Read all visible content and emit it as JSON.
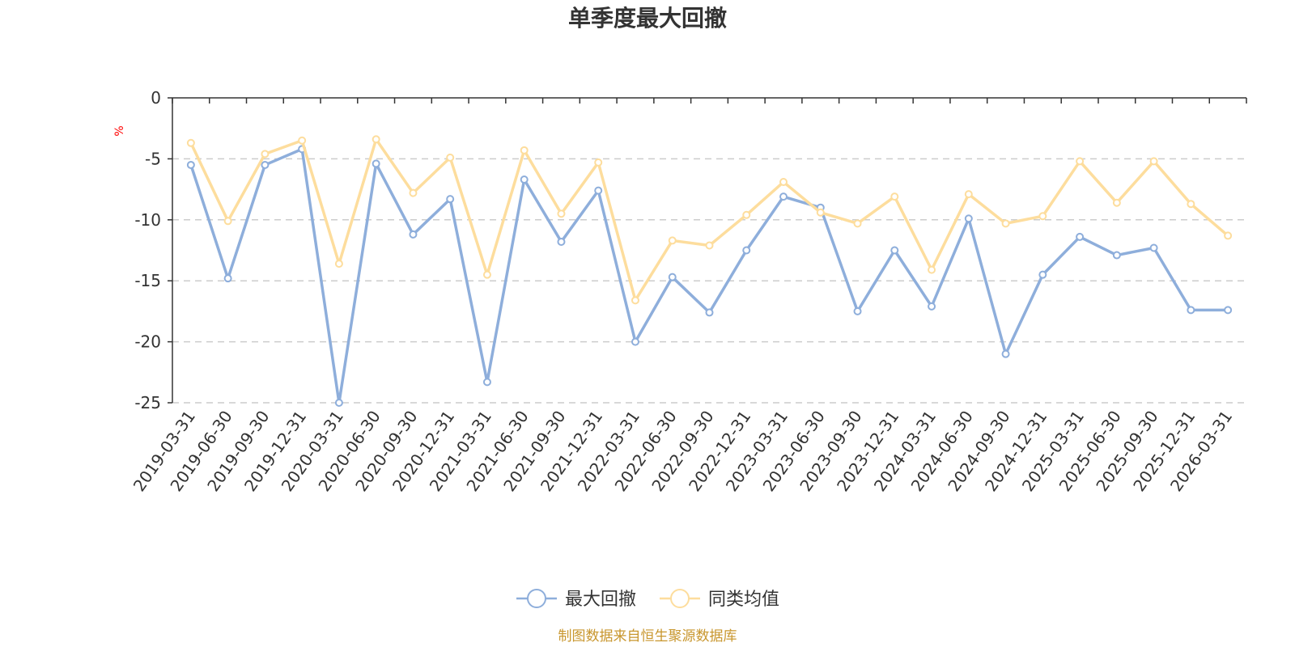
{
  "chart_data": {
    "type": "line",
    "title": "单季度最大回撤",
    "ylabel": "%",
    "ylim": [
      -25,
      0
    ],
    "yticks": [
      0,
      -5,
      -10,
      -15,
      -20,
      -25
    ],
    "categories": [
      "2019-03-31",
      "2019-06-30",
      "2019-09-30",
      "2019-12-31",
      "2020-03-31",
      "2020-06-30",
      "2020-09-30",
      "2020-12-31",
      "2021-03-31",
      "2021-06-30",
      "2021-09-30",
      "2021-12-31",
      "2022-03-31",
      "2022-06-30",
      "2022-09-30",
      "2022-12-31",
      "2023-03-31",
      "2023-06-30",
      "2023-09-30",
      "2023-12-31",
      "2024-03-31",
      "2024-06-30",
      "2024-09-30",
      "2024-12-31",
      "2025-03-31",
      "2025-06-30",
      "2025-09-30",
      "2025-12-31",
      "2026-03-31"
    ],
    "series": [
      {
        "name": "最大回撤",
        "color": "#8eaedb",
        "values": [
          -5.5,
          -14.8,
          -5.5,
          -4.2,
          -25.0,
          -5.4,
          -11.2,
          -8.3,
          -23.3,
          -6.7,
          -11.8,
          -7.6,
          -20.0,
          -14.7,
          -17.6,
          -12.5,
          -8.1,
          -9.0,
          -17.5,
          -12.5,
          -17.1,
          -9.9,
          -21.0,
          -14.5,
          -11.4,
          -12.9,
          -12.3,
          -17.4,
          -17.4
        ]
      },
      {
        "name": "同类均值",
        "color": "#fddd9d",
        "values": [
          -3.7,
          -10.1,
          -4.6,
          -3.5,
          -13.6,
          -3.4,
          -7.8,
          -4.9,
          -14.5,
          -4.3,
          -9.5,
          -5.3,
          -16.6,
          -11.7,
          -12.1,
          -9.6,
          -6.9,
          -9.4,
          -10.3,
          -8.1,
          -14.1,
          -7.9,
          -10.3,
          -9.7,
          -5.2,
          -8.6,
          -5.2,
          -8.7,
          -11.3
        ]
      }
    ],
    "grid": true,
    "legend_position": "bottom-center"
  },
  "source": "制图数据来自恒生聚源数据库"
}
